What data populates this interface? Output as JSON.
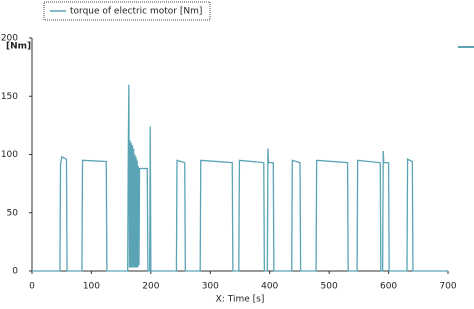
{
  "chart_data": {
    "type": "line",
    "legend_label": "torque of electric motor [Nm]",
    "ylabel": "[Nm]",
    "xlabel": "X: Time [s]",
    "xlim": [
      0,
      700
    ],
    "xticks": [
      0,
      100,
      200,
      300,
      400,
      500,
      600,
      700
    ],
    "ylim": [
      0,
      200
    ],
    "yticks": [
      0,
      50,
      100,
      150,
      200
    ],
    "series": [
      {
        "name": "torque of electric motor [Nm]",
        "color": "#5ba4b6",
        "x": [
          0,
          47,
          48,
          50,
          58,
          59,
          84,
          85,
          125,
          126,
          161,
          162,
          163,
          164,
          165,
          166,
          167,
          168,
          169,
          170,
          171,
          172,
          173,
          174,
          175,
          176,
          177,
          178,
          179,
          180,
          181,
          194,
          195,
          198,
          199,
          200,
          243,
          244,
          257,
          258,
          283,
          284,
          337,
          338,
          348,
          349,
          390,
          391,
          396,
          397,
          398,
          406,
          407,
          437,
          438,
          451,
          452,
          478,
          479,
          531,
          532,
          547,
          548,
          586,
          587,
          590,
          591,
          592,
          600,
          601,
          631,
          632,
          640,
          641,
          700
        ],
        "values": [
          0,
          0,
          92,
          98,
          96,
          0,
          0,
          95,
          94,
          0,
          0,
          100,
          160,
          3,
          112,
          3,
          110,
          3,
          108,
          3,
          105,
          3,
          100,
          3,
          98,
          3,
          95,
          3,
          90,
          5,
          88,
          88,
          0,
          0,
          124,
          0,
          0,
          95,
          93,
          0,
          0,
          95,
          93,
          0,
          0,
          95,
          93,
          0,
          0,
          105,
          93,
          93,
          0,
          0,
          95,
          93,
          0,
          0,
          95,
          93,
          0,
          0,
          95,
          93,
          0,
          0,
          103,
          93,
          93,
          0,
          0,
          96,
          94,
          0,
          0
        ]
      }
    ]
  }
}
